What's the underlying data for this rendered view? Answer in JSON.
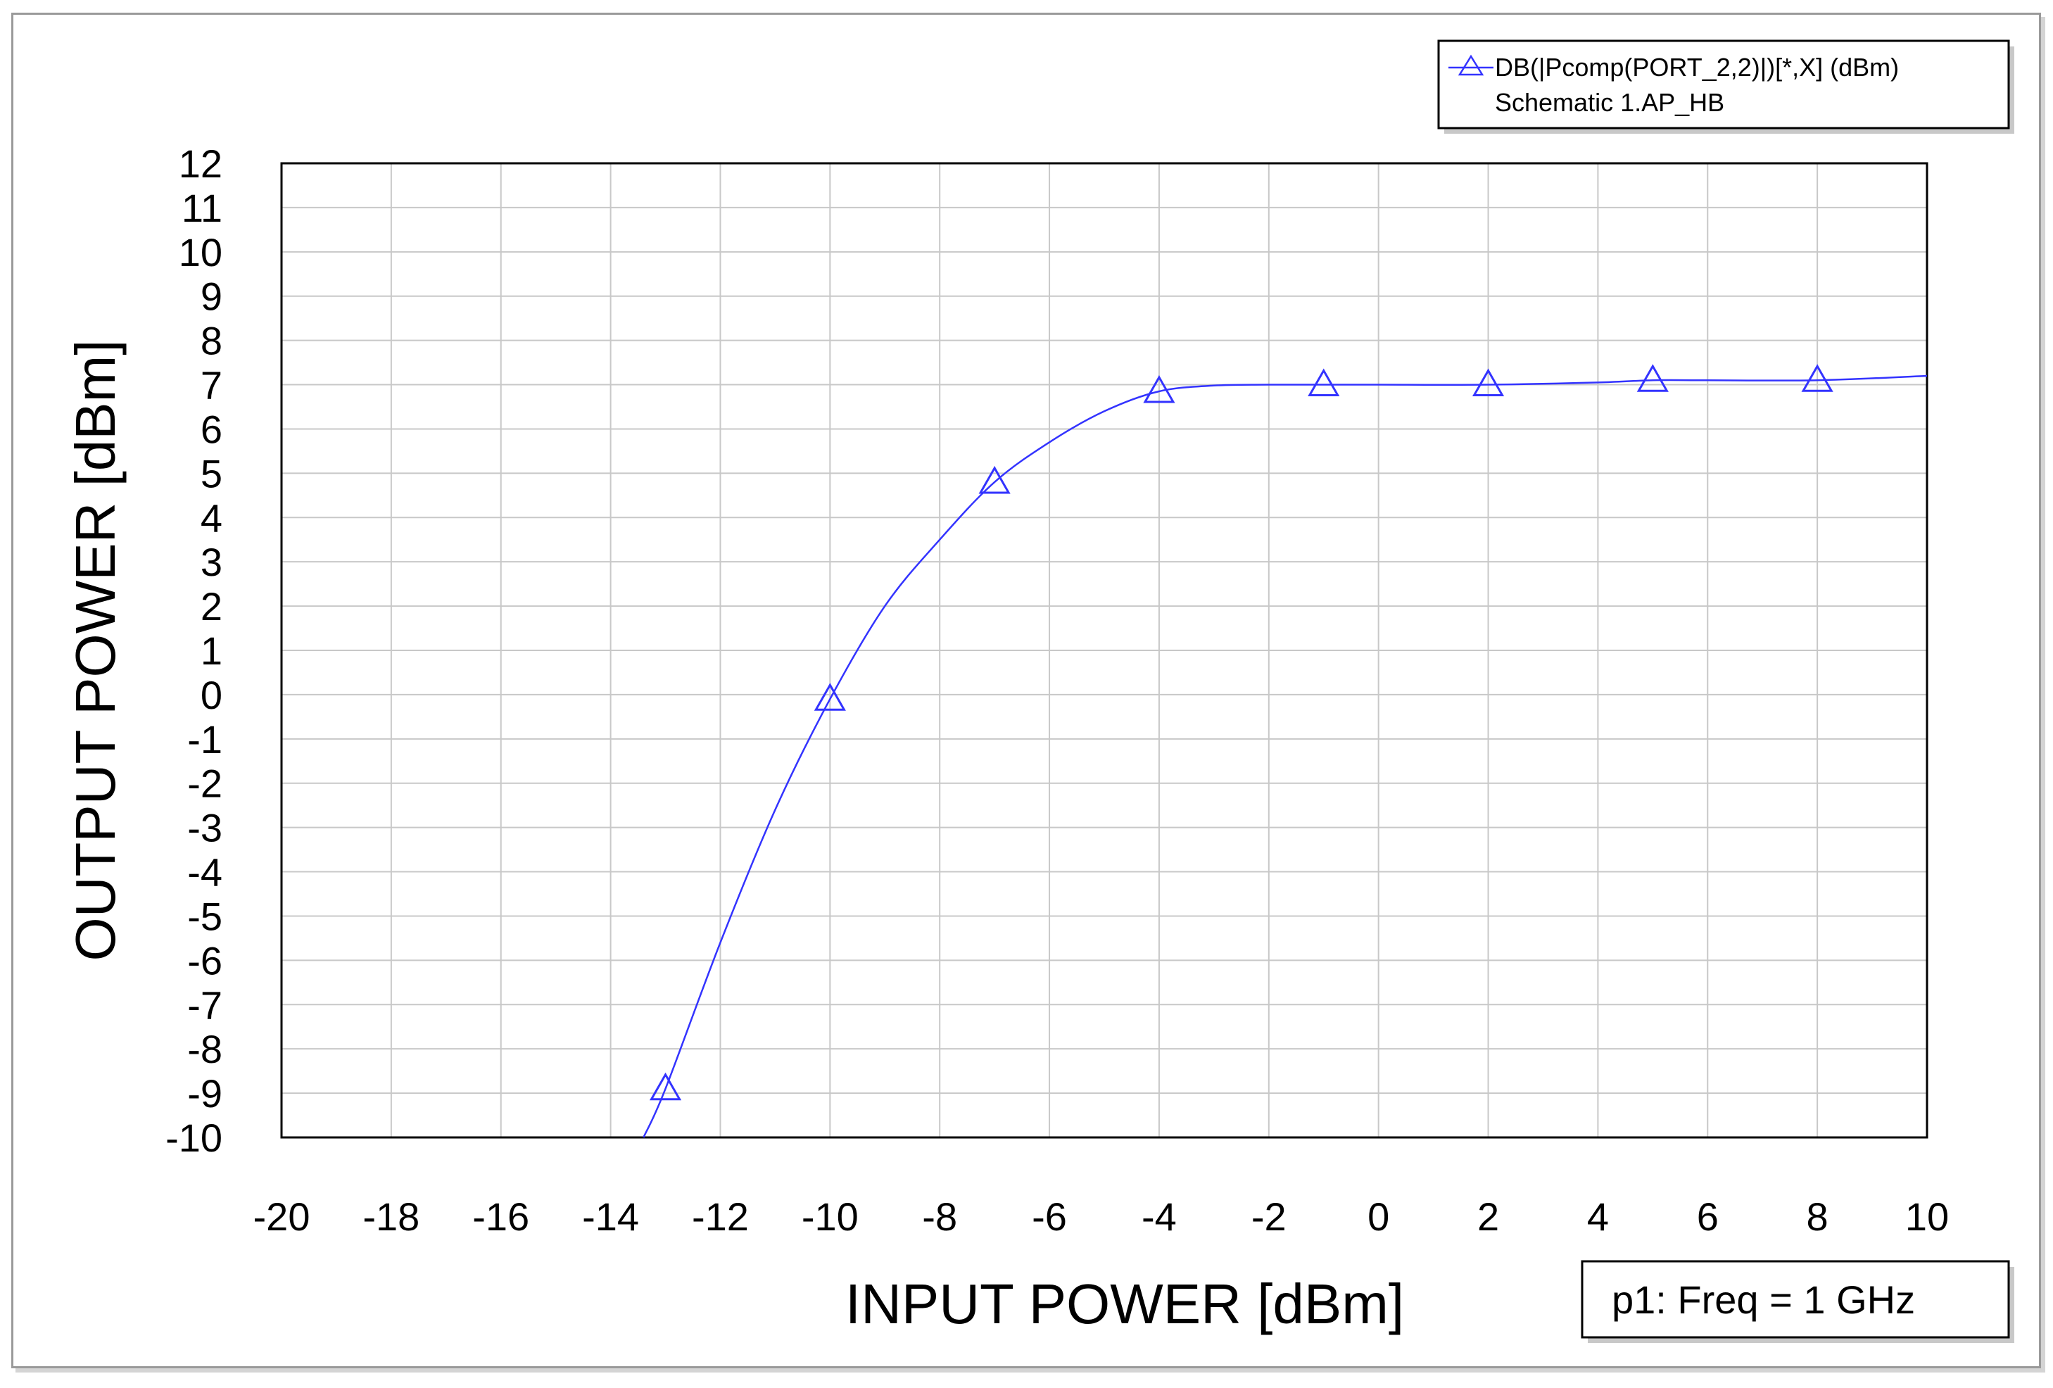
{
  "chart_data": {
    "type": "line",
    "xlabel": "INPUT POWER [dBm]",
    "ylabel": "OUTPUT POWER [dBm]",
    "xlim": [
      -20,
      10
    ],
    "ylim": [
      -10,
      12
    ],
    "x_ticks": [
      -20,
      -18,
      -16,
      -14,
      -12,
      -10,
      -8,
      -6,
      -4,
      -2,
      0,
      2,
      4,
      6,
      8,
      10
    ],
    "y_ticks": [
      -10,
      -9,
      -8,
      -7,
      -6,
      -5,
      -4,
      -3,
      -2,
      -1,
      0,
      1,
      2,
      3,
      4,
      5,
      6,
      7,
      8,
      9,
      10,
      11,
      12
    ],
    "grid": true,
    "legend": {
      "position": "top-right",
      "entry": "DB(|Pcomp(PORT_2,2)|)[*,X] (dBm)",
      "source": "Schematic 1.AP_HB",
      "marker": "triangle"
    },
    "annotation": "p1: Freq = 1 GHz",
    "colors": {
      "series": "#3333ff",
      "grid": "#c8c8c8",
      "frame": "#000000"
    },
    "series": [
      {
        "name": "DB(|Pcomp(PORT_2,2)|)[*,X] (dBm)",
        "x": [
          -13.4,
          -13,
          -12,
          -11,
          -10,
          -9,
          -8,
          -7,
          -6,
          -5,
          -4,
          -3,
          -2,
          -1,
          0,
          2,
          4,
          5,
          6,
          8,
          10
        ],
        "y": [
          -10,
          -8.9,
          -5.6,
          -2.6,
          -0.1,
          2.0,
          3.5,
          4.8,
          5.7,
          6.4,
          6.85,
          6.98,
          7.0,
          7.0,
          7.0,
          7.0,
          7.05,
          7.1,
          7.1,
          7.1,
          7.2
        ]
      }
    ],
    "markers": {
      "x": [
        -13,
        -10,
        -7,
        -4,
        -1,
        2,
        5,
        8
      ],
      "y": [
        -8.9,
        -0.1,
        4.8,
        6.85,
        7.0,
        7.0,
        7.1,
        7.1
      ]
    }
  }
}
